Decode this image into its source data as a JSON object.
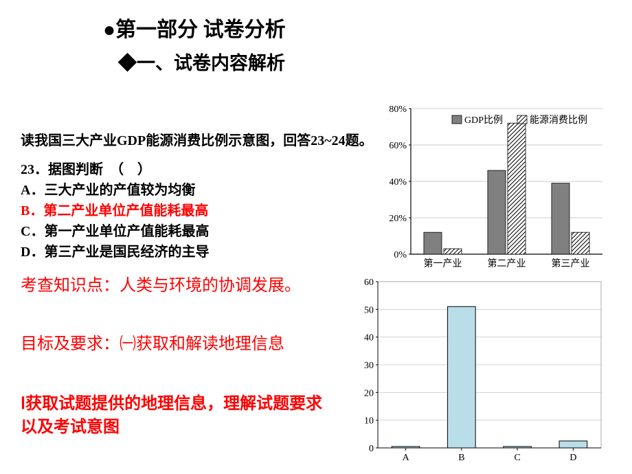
{
  "header1": "●第一部分  试卷分析",
  "header2": "◆一、试卷内容解析",
  "prompt": "读我国三大产业GDP能源消费比例示意图，回答23~24题。",
  "q23": {
    "stem": "23．据图判断　（　）",
    "A": "A．三大产业的产值较为均衡",
    "B": "B．第二产业单位产值能耗最高",
    "C": "C．第一产业单位产值能耗最高",
    "D": "D．第三产业是国民经济的主导"
  },
  "knowledge": "考查知识点：人类与环境的协调发展。",
  "objective": "目标及要求：㈠获取和解读地理信息",
  "req": "Ⅰ获取试题提供的地理信息，理解试题要求以及考试意图",
  "chart1": {
    "type": "bar",
    "legend": [
      "GDP比例",
      "能源消费比例"
    ],
    "categories": [
      "第一产业",
      "第二产业",
      "第三产业"
    ],
    "series_gdp": [
      12,
      46,
      39
    ],
    "series_energy": [
      3,
      72,
      12
    ],
    "ylim": [
      0,
      80
    ],
    "ytick_step": 20,
    "ytick_suffix": "%",
    "bar_colors": {
      "gdp_fill": "#808080",
      "energy_pattern": "hatch"
    },
    "axis_color": "#000000",
    "grid_color": "#999999",
    "font_size": 14,
    "background_color": "#ffffff"
  },
  "chart2": {
    "type": "bar",
    "categories": [
      "A",
      "B",
      "C",
      "D"
    ],
    "values": [
      0.5,
      51,
      0.5,
      2.5
    ],
    "ylim": [
      0,
      60
    ],
    "ytick_step": 10,
    "bar_fill": "#b9dde9",
    "bar_stroke": "#000000",
    "axis_color": "#000000",
    "grid_color": "#aaaaaa",
    "font_size": 14,
    "background_color": "#ffffff"
  }
}
